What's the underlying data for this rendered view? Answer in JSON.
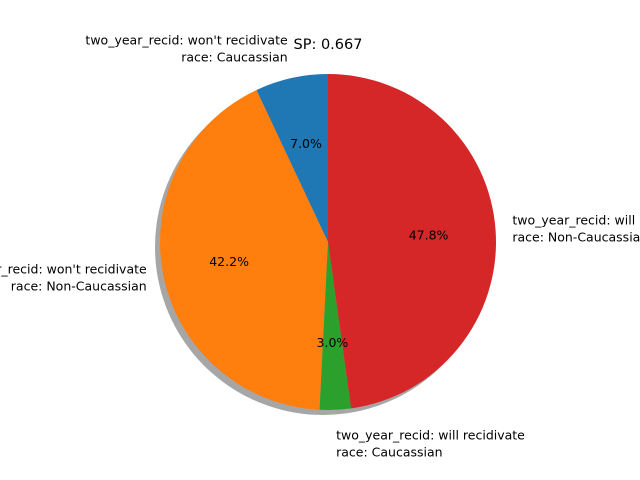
{
  "chart_data": {
    "type": "pie",
    "title": "SP: 0.667",
    "shadow": true,
    "start_angle_deg": 90,
    "direction": "counterclockwise",
    "slices": [
      {
        "label_lines": [
          "two_year_recid: won't recidivate",
          "race: Caucassian"
        ],
        "value": 7.0,
        "pct_label": "7.0%",
        "color": "#1f77b4"
      },
      {
        "label_lines": [
          "two_year_recid: won't recidivate",
          "race: Non-Caucassian"
        ],
        "value": 42.2,
        "pct_label": "42.2%",
        "color": "#ff7f0e"
      },
      {
        "label_lines": [
          "two_year_recid: will recidivate",
          "race: Caucassian"
        ],
        "value": 3.0,
        "pct_label": "3.0%",
        "color": "#2ca02c"
      },
      {
        "label_lines": [
          "two_year_recid: will recidivate",
          "race: Non-Caucassian"
        ],
        "value": 47.8,
        "pct_label": "47.8%",
        "color": "#d62728"
      }
    ]
  }
}
